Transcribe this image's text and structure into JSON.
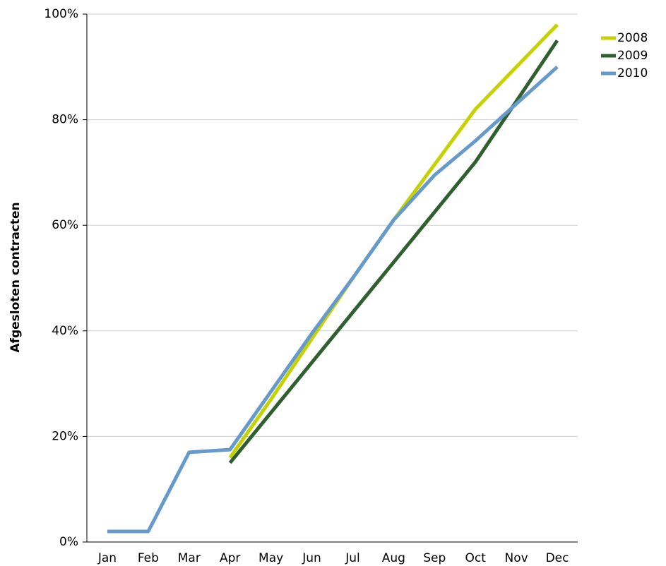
{
  "chart_data": {
    "type": "line",
    "y_label": "Afgesloten contracten",
    "categories": [
      "Jan",
      "Feb",
      "Mar",
      "Apr",
      "May",
      "Jun",
      "Jul",
      "Aug",
      "Sep",
      "Oct",
      "Nov",
      "Dec"
    ],
    "series": [
      {
        "name": "2008",
        "color": "#c5d200",
        "values": [
          null,
          null,
          null,
          16,
          27,
          38.5,
          50,
          61,
          71.5,
          82,
          90,
          98
        ]
      },
      {
        "name": "2009",
        "color": "#2f5f2f",
        "values": [
          null,
          null,
          null,
          15,
          24.5,
          34,
          43.5,
          53,
          62.5,
          72,
          83.5,
          95
        ]
      },
      {
        "name": "2010",
        "color": "#6699cc",
        "values": [
          2,
          2,
          17,
          17.5,
          28.5,
          39.5,
          50,
          61,
          69.5,
          76,
          83,
          90
        ]
      }
    ],
    "ylim": [
      0,
      100
    ],
    "yticks": [
      {
        "value": 0,
        "label": "0%"
      },
      {
        "value": 20,
        "label": "20%"
      },
      {
        "value": 40,
        "label": "40%"
      },
      {
        "value": 60,
        "label": "60%"
      },
      {
        "value": 80,
        "label": "80%"
      },
      {
        "value": 100,
        "label": "100%"
      }
    ],
    "grid": true,
    "legend": "right"
  }
}
